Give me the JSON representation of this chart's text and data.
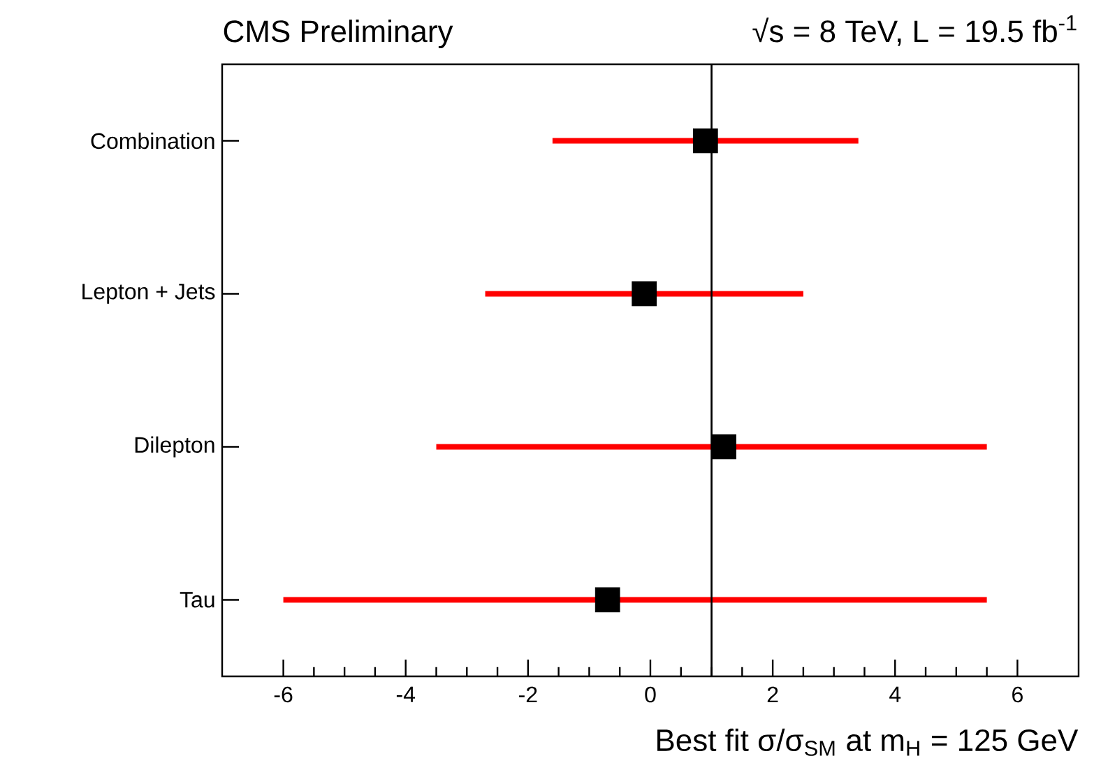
{
  "chart_data": {
    "type": "scatter",
    "orientation": "horizontal",
    "title": "CMS Preliminary",
    "subtitle": "√s = 8 TeV, L = 19.5 fb$^{-1}$",
    "xlabel": "Best fit σ/σ$_{SM}$ at m$_{H}$ = 125 GeV",
    "categories": [
      "Combination",
      "Lepton + Jets",
      "Dilepton",
      "Tau"
    ],
    "values": [
      0.9,
      -0.1,
      1.2,
      -0.7
    ],
    "errors": [
      [
        -1.6,
        3.4
      ],
      [
        -2.7,
        2.5
      ],
      [
        -3.5,
        5.5
      ],
      [
        -6.0,
        5.5
      ]
    ],
    "color": "#000000",
    "marker": "square",
    "xlim": [
      -7,
      7
    ],
    "xticks": [
      -6,
      -4,
      -2,
      0,
      2,
      4,
      6
    ],
    "ref_lines": [
      {
        "axis": "x",
        "value": 1,
        "color": "#000000"
      }
    ],
    "grid": false
  }
}
